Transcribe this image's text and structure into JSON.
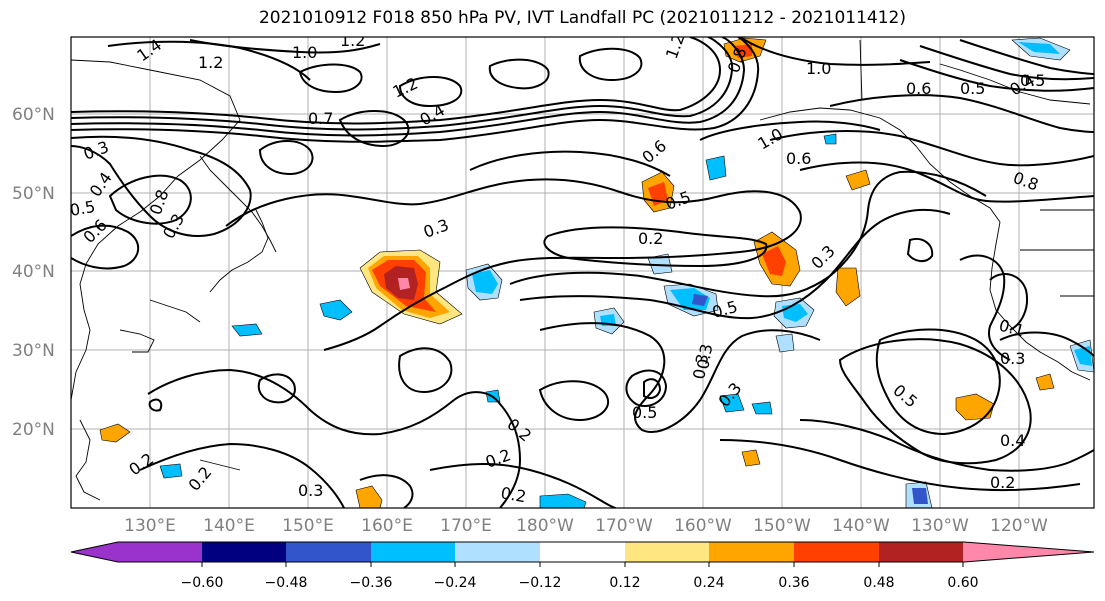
{
  "title": "2021010912 F018 850 hPa PV, IVT Landfall PC (2021011212 - 2021011412)",
  "map": {
    "lat_labels": [
      "60°N",
      "50°N",
      "40°N",
      "30°N",
      "20°N"
    ],
    "lon_labels": [
      "130°E",
      "140°E",
      "150°E",
      "160°E",
      "170°E",
      "180°W",
      "170°W",
      "160°W",
      "150°W",
      "140°W",
      "130°W",
      "120°W"
    ],
    "contour_labels": [
      "1.4",
      "1.2",
      "1.2",
      "1.0",
      "1.2",
      "1.0",
      "0.8",
      "1.2",
      "0.6",
      "0.5",
      "0.4",
      "0.7",
      "0.4",
      "0.3",
      "0.4",
      "0.5",
      "0.8",
      "0.6",
      "0.3",
      "0.6",
      "1.0",
      "0.6",
      "0.8",
      "0.5",
      "0.2",
      "0.3",
      "0.5",
      "0.3",
      "0.3",
      "0.3",
      "0.2",
      "0.5",
      "0.3",
      "0.5",
      "0.1",
      "0.3",
      "0.5",
      "0.2",
      "0.2",
      "0.2",
      "0.2",
      "0.3",
      "0.4",
      "0.2"
    ]
  },
  "colorbar": {
    "colors": [
      "#9933cc",
      "#000080",
      "#3355cc",
      "#00bfff",
      "#b0e0ff",
      "#ffffff",
      "#ffe680",
      "#ffa500",
      "#ff4000",
      "#b22222",
      "#ff88aa"
    ],
    "tick_labels": [
      "−0.60",
      "−0.48",
      "−0.36",
      "−0.24",
      "−0.12",
      "0.12",
      "0.24",
      "0.36",
      "0.48",
      "0.60"
    ]
  }
}
